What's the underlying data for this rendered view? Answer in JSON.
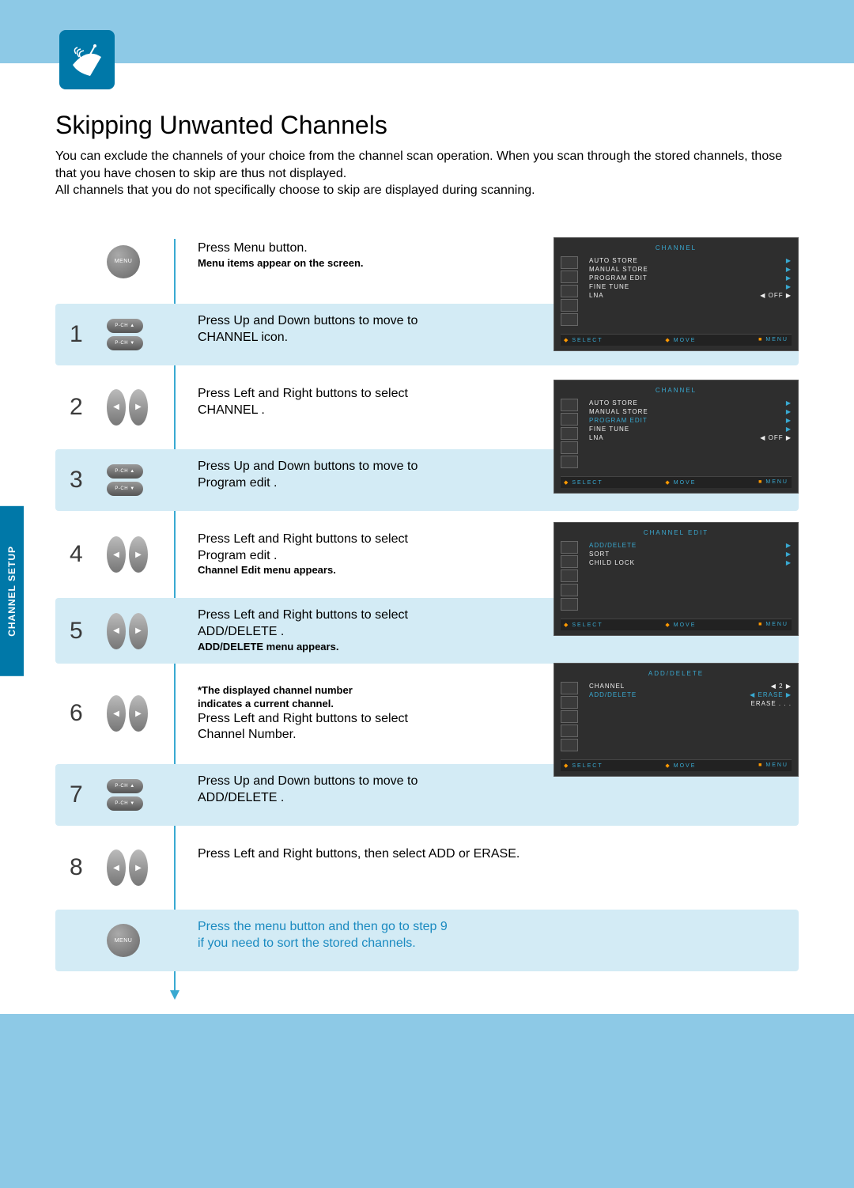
{
  "header": {
    "title": "Skipping Unwanted Channels"
  },
  "intro": {
    "p1": "You can exclude the channels of your choice from the channel scan operation. When you scan through the stored channels, those that you have chosen to skip are thus not displayed.",
    "p2": "All channels that you do not specifically choose to skip are displayed during scanning."
  },
  "sideTab": "CHANNEL SETUP",
  "button_labels": {
    "menu": "MENU",
    "pch_up": "P-CH ▲",
    "pch_down": "P-CH ▼",
    "left": "◀",
    "right": "▶"
  },
  "steps": [
    {
      "num": "",
      "icon": "menu",
      "band": false,
      "lines": [
        {
          "text": "Press Menu button.",
          "style": ""
        },
        {
          "text": "Menu items appear on the screen.",
          "style": "bold"
        }
      ]
    },
    {
      "num": "1",
      "icon": "updown",
      "band": true,
      "lines": [
        {
          "text": "Press Up and Down buttons to move to",
          "style": ""
        },
        {
          "text": " CHANNEL  icon.",
          "style": ""
        }
      ]
    },
    {
      "num": "2",
      "icon": "leftright",
      "band": false,
      "lines": [
        {
          "text": "Press Left and Right buttons to select",
          "style": ""
        },
        {
          "text": " CHANNEL .",
          "style": ""
        }
      ]
    },
    {
      "num": "3",
      "icon": "updown",
      "band": true,
      "lines": [
        {
          "text": "Press Up and Down buttons to move to",
          "style": ""
        },
        {
          "text": " Program edit .",
          "style": ""
        }
      ]
    },
    {
      "num": "4",
      "icon": "leftright",
      "band": false,
      "lines": [
        {
          "text": "Press Left and Right buttons to select",
          "style": ""
        },
        {
          "text": " Program edit .",
          "style": ""
        },
        {
          "text": "Channel Edit menu appears.",
          "style": "bold"
        }
      ]
    },
    {
      "num": "5",
      "icon": "leftright",
      "band": true,
      "lines": [
        {
          "text": "Press Left and Right buttons to select",
          "style": ""
        },
        {
          "text": " ADD/DELETE .",
          "style": ""
        },
        {
          "text": "ADD/DELETE menu appears.",
          "style": "bold"
        }
      ]
    },
    {
      "num": "6",
      "icon": "leftright",
      "band": false,
      "lines": [
        {
          "text": "*The displayed channel number",
          "style": "bold"
        },
        {
          "text": "indicates a current channel.",
          "style": "bold"
        },
        {
          "text": "Press Left and Right buttons to select",
          "style": ""
        },
        {
          "text": "Channel Number.",
          "style": ""
        }
      ]
    },
    {
      "num": "7",
      "icon": "updown",
      "band": true,
      "lines": [
        {
          "text": "Press Up and Down buttons to move to",
          "style": ""
        },
        {
          "text": " ADD/DELETE .",
          "style": ""
        }
      ]
    },
    {
      "num": "8",
      "icon": "leftright",
      "band": false,
      "lines": [
        {
          "text": "Press Left and Right buttons, then select ADD or ERASE.",
          "style": ""
        }
      ]
    },
    {
      "num": "",
      "icon": "menu",
      "band": true,
      "final": true,
      "lines": [
        {
          "text": "Press the menu button and then go to step 9",
          "style": "blue"
        },
        {
          "text": "if you need to sort the stored channels.",
          "style": "blue"
        }
      ]
    }
  ],
  "osd_footer": {
    "select": "SELECT",
    "move": "MOVE",
    "menu": "MENU"
  },
  "osd1": {
    "title": "CHANNEL",
    "items": [
      {
        "label": "AUTO  STORE",
        "val": "",
        "r": "▶"
      },
      {
        "label": "MANUAL  STORE",
        "val": "",
        "r": "▶"
      },
      {
        "label": "PROGRAM  EDIT",
        "val": "",
        "r": "▶"
      },
      {
        "label": "FINE  TUNE",
        "val": "",
        "r": "▶"
      },
      {
        "label": "LNA",
        "val": "◀     OFF     ▶",
        "r": ""
      }
    ],
    "hl": -1
  },
  "osd2": {
    "title": "CHANNEL",
    "items": [
      {
        "label": "AUTO  STORE",
        "val": "",
        "r": "▶"
      },
      {
        "label": "MANUAL  STORE",
        "val": "",
        "r": "▶"
      },
      {
        "label": "PROGRAM  EDIT",
        "val": "",
        "r": "▶"
      },
      {
        "label": "FINE  TUNE",
        "val": "",
        "r": "▶"
      },
      {
        "label": "LNA",
        "val": "◀     OFF     ▶",
        "r": ""
      }
    ],
    "hl": 2
  },
  "osd3": {
    "title": "CHANNEL  EDIT",
    "items": [
      {
        "label": "ADD/DELETE",
        "val": "",
        "r": "▶"
      },
      {
        "label": "SORT",
        "val": "",
        "r": "▶"
      },
      {
        "label": "CHILD  LOCK",
        "val": "",
        "r": "▶"
      }
    ],
    "hl": 0
  },
  "osd4": {
    "title": "ADD/DELETE",
    "items": [
      {
        "label": "CHANNEL",
        "val": "◀       2       ▶",
        "r": ""
      },
      {
        "label": "ADD/DELETE",
        "val": "◀   ERASE   ▶",
        "r": ""
      },
      {
        "label": "",
        "val": "ERASE . . .",
        "r": ""
      }
    ],
    "hl": 1
  }
}
